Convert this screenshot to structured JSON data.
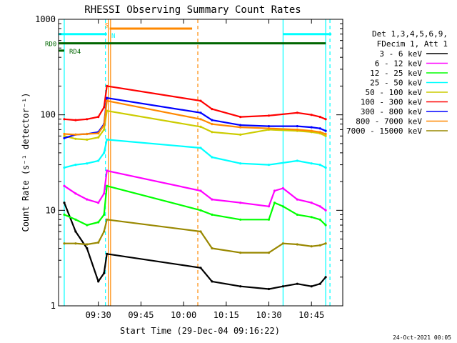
{
  "chart_data": {
    "type": "line",
    "title": "RHESSI Observing Summary Count Rates",
    "xlabel": "Start Time (29-Dec-04 09:16:22)",
    "ylabel": "Count Rate (s⁻¹ detector⁻¹)",
    "y_scale": "log",
    "ylim": [
      1,
      1000
    ],
    "xlim": [
      "09:16",
      "10:56"
    ],
    "x_ticks": [
      "09:30",
      "09:45",
      "10:00",
      "10:15",
      "10:30",
      "10:45"
    ],
    "y_ticks": [
      "1",
      "10",
      "100",
      "1000"
    ],
    "legend_header": [
      "Det 1,3,4,5,6,9,",
      "FDecim 1, Att 1"
    ],
    "legend_position": "right",
    "series": [
      {
        "name": "3 - 6 keV",
        "color": "#000000",
        "x": [
          "09:18",
          "09:22",
          "09:26",
          "09:30",
          "09:32",
          "09:33",
          "10:06",
          "10:10",
          "10:20",
          "10:30",
          "10:35",
          "10:40",
          "10:45",
          "10:48",
          "10:50"
        ],
        "values": [
          12,
          6,
          4,
          1.8,
          2.2,
          3.5,
          2.5,
          1.8,
          1.6,
          1.5,
          1.6,
          1.7,
          1.6,
          1.7,
          2.0
        ]
      },
      {
        "name": "6 - 12 keV",
        "color": "#ff00ff",
        "x": [
          "09:18",
          "09:22",
          "09:26",
          "09:30",
          "09:32",
          "09:33",
          "10:06",
          "10:10",
          "10:20",
          "10:30",
          "10:32",
          "10:35",
          "10:40",
          "10:45",
          "10:48",
          "10:50"
        ],
        "values": [
          18,
          15,
          13,
          12,
          15,
          26,
          16,
          13,
          12,
          11,
          16,
          17,
          13,
          12,
          11,
          10
        ]
      },
      {
        "name": "12 - 25 keV",
        "color": "#00ff00",
        "x": [
          "09:18",
          "09:22",
          "09:26",
          "09:30",
          "09:32",
          "09:33",
          "10:06",
          "10:10",
          "10:20",
          "10:30",
          "10:32",
          "10:35",
          "10:40",
          "10:45",
          "10:48",
          "10:50"
        ],
        "values": [
          9,
          8,
          7,
          7.5,
          9,
          18,
          10,
          9,
          8,
          8,
          12,
          11,
          9,
          8.5,
          8,
          7
        ]
      },
      {
        "name": "25 - 50 keV",
        "color": "#00ffff",
        "x": [
          "09:18",
          "09:22",
          "09:26",
          "09:30",
          "09:32",
          "09:33",
          "10:06",
          "10:10",
          "10:20",
          "10:30",
          "10:40",
          "10:45",
          "10:48",
          "10:50"
        ],
        "values": [
          28,
          30,
          31,
          33,
          40,
          55,
          45,
          36,
          31,
          30,
          33,
          31,
          30,
          28
        ]
      },
      {
        "name": "50 - 100 keV",
        "color": "#cccc00",
        "x": [
          "09:18",
          "09:22",
          "09:26",
          "09:30",
          "09:32",
          "09:33",
          "10:06",
          "10:10",
          "10:20",
          "10:30",
          "10:40",
          "10:45",
          "10:48",
          "10:50"
        ],
        "values": [
          60,
          56,
          55,
          58,
          70,
          110,
          75,
          66,
          62,
          70,
          68,
          66,
          64,
          60
        ]
      },
      {
        "name": "100 - 300 keV",
        "color": "#ff0000",
        "x": [
          "09:18",
          "09:22",
          "09:26",
          "09:30",
          "09:32",
          "09:33",
          "10:06",
          "10:10",
          "10:20",
          "10:30",
          "10:40",
          "10:45",
          "10:48",
          "10:50"
        ],
        "values": [
          90,
          88,
          90,
          95,
          120,
          200,
          140,
          115,
          95,
          98,
          105,
          100,
          95,
          90
        ]
      },
      {
        "name": "300 - 800 keV",
        "color": "#0000ff",
        "x": [
          "09:18",
          "09:22",
          "09:26",
          "09:30",
          "09:32",
          "09:33",
          "10:06",
          "10:10",
          "10:20",
          "10:30",
          "10:40",
          "10:45",
          "10:48",
          "10:50"
        ],
        "values": [
          57,
          62,
          63,
          66,
          80,
          150,
          105,
          88,
          78,
          76,
          76,
          74,
          72,
          68
        ]
      },
      {
        "name": "800 - 7000 keV",
        "color": "#ff8800",
        "x": [
          "09:18",
          "09:22",
          "09:26",
          "09:30",
          "09:32",
          "09:33",
          "10:06",
          "10:10",
          "10:20",
          "10:30",
          "10:40",
          "10:45",
          "10:48",
          "10:50"
        ],
        "values": [
          63,
          62,
          63,
          64,
          78,
          140,
          90,
          80,
          74,
          72,
          70,
          68,
          66,
          63
        ]
      },
      {
        "name": "7000 - 15000 keV",
        "color": "#998800",
        "x": [
          "09:18",
          "09:22",
          "09:26",
          "09:30",
          "09:32",
          "09:33",
          "10:06",
          "10:10",
          "10:20",
          "10:30",
          "10:35",
          "10:40",
          "10:45",
          "10:48",
          "10:50"
        ],
        "values": [
          4.5,
          4.5,
          4.4,
          4.6,
          6,
          8,
          6,
          4,
          3.6,
          3.6,
          4.5,
          4.4,
          4.2,
          4.3,
          4.5
        ]
      }
    ],
    "annotations": {
      "labels": [
        "RD0",
        "RD4",
        "S",
        "N"
      ],
      "attenuator_bars": [
        {
          "label": "RD0",
          "color": "#006600",
          "from": "09:16",
          "to": "10:50",
          "level": 560
        },
        {
          "label": "RD4",
          "color": "#006600",
          "from": "09:16",
          "to": "09:18",
          "level": 470
        }
      ],
      "saa_bars": [
        {
          "color": "#00ffff",
          "from": "09:16",
          "to": "09:33",
          "level": 700
        },
        {
          "color": "#00ffff",
          "from": "10:35",
          "to": "10:52",
          "level": 700
        },
        {
          "color": "#ff8800",
          "from": "09:34",
          "to": "10:03",
          "level": 800
        }
      ],
      "vertical_lines": [
        {
          "time": "09:18",
          "color": "#00ffff",
          "style": "solid"
        },
        {
          "time": "09:32.5",
          "color": "#00ffff",
          "style": "dashed"
        },
        {
          "time": "09:33.5",
          "color": "#ff8800",
          "style": "solid"
        },
        {
          "time": "09:34.3",
          "color": "#ff8800",
          "style": "solid"
        },
        {
          "time": "10:05",
          "color": "#ff8800",
          "style": "dashed"
        },
        {
          "time": "10:35",
          "color": "#00ffff",
          "style": "solid"
        },
        {
          "time": "10:50",
          "color": "#00ffff",
          "style": "solid"
        },
        {
          "time": "10:51.5",
          "color": "#00ffff",
          "style": "dashed"
        }
      ]
    }
  },
  "footer_text": "24-Oct-2021 00:05"
}
